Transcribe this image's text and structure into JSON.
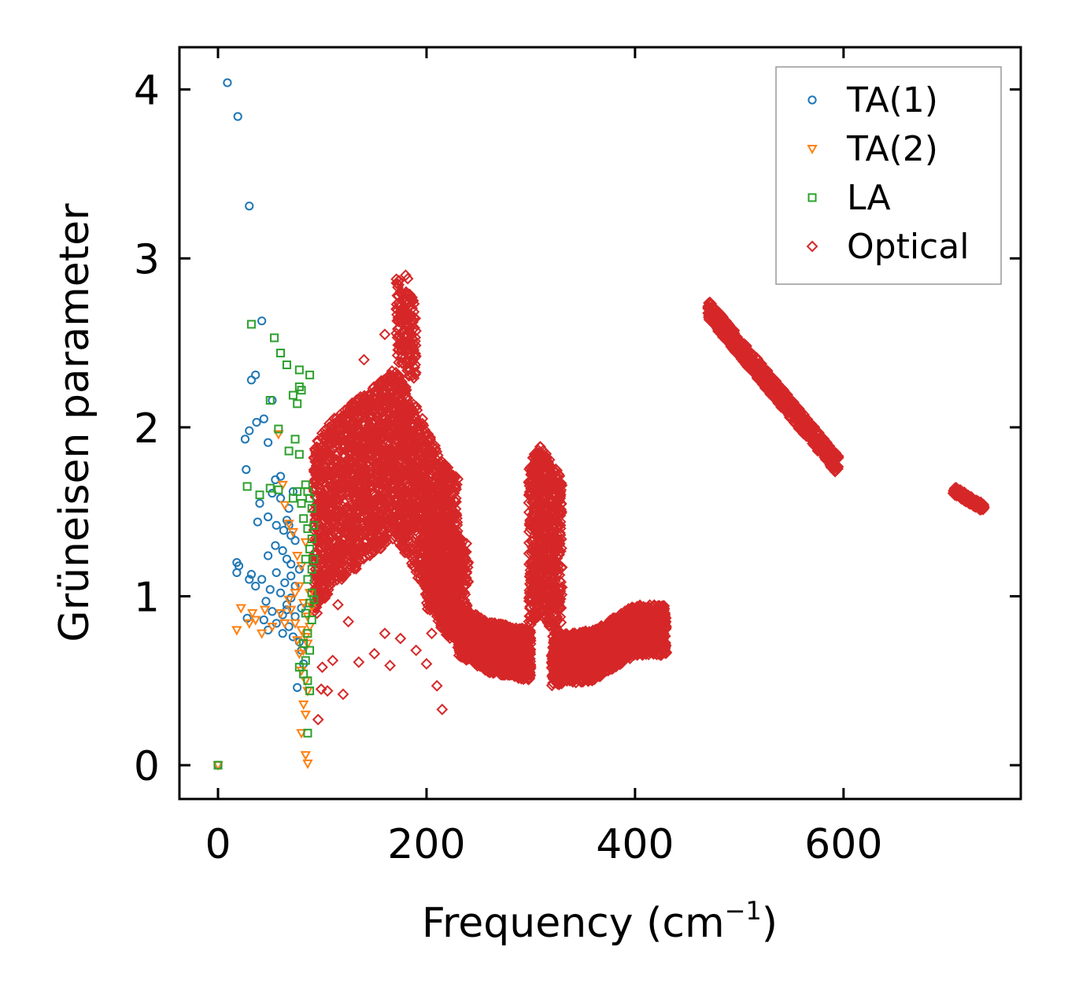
{
  "chart_data": {
    "type": "scatter",
    "title": "",
    "xlabel": "Frequency (cm",
    "xlabel_sup": "−1",
    "xlabel_close": ")",
    "ylabel": "Grüneisen parameter",
    "xlim": [
      -37,
      770
    ],
    "ylim": [
      -0.2,
      4.25
    ],
    "xticks": [
      0,
      200,
      400,
      600
    ],
    "yticks": [
      0,
      1,
      2,
      3,
      4
    ],
    "legend_position": "top-right",
    "series": [
      {
        "name": "TA(1)",
        "marker": "circle",
        "color": "#1f77b4",
        "points": [
          [
            0,
            0
          ],
          [
            9,
            4.04
          ],
          [
            19,
            3.84
          ],
          [
            30,
            3.31
          ],
          [
            42,
            2.63
          ],
          [
            36,
            2.31
          ],
          [
            32,
            2.28
          ],
          [
            44,
            2.05
          ],
          [
            37,
            2.03
          ],
          [
            30,
            1.98
          ],
          [
            26,
            1.93
          ],
          [
            52,
            2.16
          ],
          [
            48,
            1.91
          ],
          [
            27,
            1.75
          ],
          [
            55,
            1.69
          ],
          [
            60,
            1.71
          ],
          [
            52,
            1.61
          ],
          [
            60,
            1.58
          ],
          [
            72,
            1.62
          ],
          [
            68,
            1.52
          ],
          [
            40,
            1.55
          ],
          [
            48,
            1.47
          ],
          [
            66,
            1.45
          ],
          [
            38,
            1.44
          ],
          [
            56,
            1.42
          ],
          [
            63,
            1.39
          ],
          [
            70,
            1.36
          ],
          [
            74,
            1.33
          ],
          [
            55,
            1.3
          ],
          [
            62,
            1.27
          ],
          [
            48,
            1.24
          ],
          [
            66,
            1.22
          ],
          [
            18,
            1.2
          ],
          [
            20,
            1.18
          ],
          [
            70,
            1.19
          ],
          [
            78,
            1.16
          ],
          [
            32,
            1.13
          ],
          [
            30,
            1.1
          ],
          [
            56,
            1.14
          ],
          [
            42,
            1.1
          ],
          [
            64,
            1.08
          ],
          [
            74,
            1.06
          ],
          [
            18,
            1.14
          ],
          [
            36,
            1.06
          ],
          [
            50,
            1.04
          ],
          [
            60,
            1.02
          ],
          [
            70,
            0.99
          ],
          [
            46,
            0.97
          ],
          [
            66,
            0.95
          ],
          [
            80,
            0.93
          ],
          [
            52,
            0.91
          ],
          [
            62,
            0.89
          ],
          [
            74,
            0.88
          ],
          [
            28,
            0.87
          ],
          [
            44,
            0.86
          ],
          [
            56,
            0.84
          ],
          [
            68,
            0.82
          ],
          [
            48,
            0.8
          ],
          [
            62,
            0.78
          ],
          [
            72,
            0.76
          ],
          [
            78,
            0.73
          ],
          [
            80,
            0.68
          ],
          [
            76,
            0.46
          ],
          [
            82,
            0.6
          ],
          [
            68,
            1.42
          ],
          [
            70,
            1.12
          ],
          [
            66,
            0.92
          ]
        ]
      },
      {
        "name": "TA(2)",
        "marker": "triangle-down",
        "color": "#ff7f0e",
        "points": [
          [
            0,
            0
          ],
          [
            22,
            0.93
          ],
          [
            33,
            0.9
          ],
          [
            45,
            0.92
          ],
          [
            52,
            0.82
          ],
          [
            18,
            0.8
          ],
          [
            30,
            0.84
          ],
          [
            36,
            0.86
          ],
          [
            42,
            0.78
          ],
          [
            58,
            1.96
          ],
          [
            62,
            1.66
          ],
          [
            64,
            1.54
          ],
          [
            68,
            1.43
          ],
          [
            72,
            1.38
          ],
          [
            76,
            1.24
          ],
          [
            80,
            1.18
          ],
          [
            84,
            1.32
          ],
          [
            78,
            1.06
          ],
          [
            82,
            0.96
          ],
          [
            86,
            0.88
          ],
          [
            88,
            1.02
          ],
          [
            74,
            0.84
          ],
          [
            80,
            0.8
          ],
          [
            84,
            0.76
          ],
          [
            86,
            0.72
          ],
          [
            82,
            0.68
          ],
          [
            78,
            0.66
          ],
          [
            80,
            0.56
          ],
          [
            84,
            0.5
          ],
          [
            86,
            0.44
          ],
          [
            82,
            0.36
          ],
          [
            84,
            0.3
          ],
          [
            80,
            0.19
          ],
          [
            84,
            0.06
          ],
          [
            86,
            0.01
          ],
          [
            70,
            0.92
          ],
          [
            74,
            1.02
          ],
          [
            90,
            0.94
          ],
          [
            88,
            0.82
          ],
          [
            76,
            0.74
          ],
          [
            64,
            0.84
          ],
          [
            60,
            0.9
          ],
          [
            68,
            0.98
          ]
        ]
      },
      {
        "name": "LA",
        "marker": "square",
        "color": "#2ca02c",
        "points": [
          [
            0,
            0
          ],
          [
            32,
            2.61
          ],
          [
            54,
            2.53
          ],
          [
            60,
            2.44
          ],
          [
            66,
            2.37
          ],
          [
            78,
            2.34
          ],
          [
            88,
            2.31
          ],
          [
            78,
            2.24
          ],
          [
            80,
            2.22
          ],
          [
            72,
            2.19
          ],
          [
            76,
            2.14
          ],
          [
            50,
            2.16
          ],
          [
            58,
            1.99
          ],
          [
            74,
            1.93
          ],
          [
            68,
            1.86
          ],
          [
            78,
            1.84
          ],
          [
            28,
            1.65
          ],
          [
            40,
            1.6
          ],
          [
            50,
            1.64
          ],
          [
            58,
            1.63
          ],
          [
            72,
            1.58
          ],
          [
            76,
            1.62
          ],
          [
            80,
            1.55
          ],
          [
            84,
            1.66
          ],
          [
            86,
            1.62
          ],
          [
            88,
            1.58
          ],
          [
            90,
            1.52
          ],
          [
            82,
            1.46
          ],
          [
            86,
            1.4
          ],
          [
            90,
            1.34
          ],
          [
            88,
            1.28
          ],
          [
            84,
            1.22
          ],
          [
            90,
            1.16
          ],
          [
            86,
            1.1
          ],
          [
            90,
            1.02
          ],
          [
            88,
            0.96
          ],
          [
            84,
            0.9
          ],
          [
            90,
            0.86
          ],
          [
            86,
            0.78
          ],
          [
            82,
            0.72
          ],
          [
            88,
            0.68
          ],
          [
            84,
            0.62
          ],
          [
            78,
            0.58
          ],
          [
            82,
            0.54
          ],
          [
            86,
            0.5
          ],
          [
            88,
            0.44
          ],
          [
            86,
            0.19
          ],
          [
            92,
            1.42
          ],
          [
            92,
            1.22
          ],
          [
            92,
            0.98
          ]
        ]
      },
      {
        "name": "Optical",
        "marker": "diamond",
        "color": "#d62728",
        "points": []
      }
    ]
  },
  "legend": {
    "items": [
      "TA(1)",
      "TA(2)",
      "LA",
      "Optical"
    ]
  }
}
